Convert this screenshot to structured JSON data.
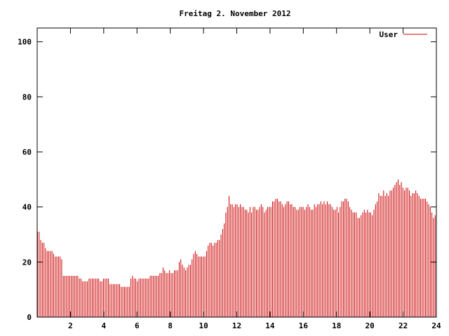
{
  "chart_data": {
    "type": "bar",
    "title": "Freitag 2. November 2012",
    "xlabel": "",
    "ylabel": "",
    "xlim": [
      0,
      24
    ],
    "ylim": [
      0,
      105
    ],
    "xticks": [
      2,
      4,
      6,
      8,
      10,
      12,
      14,
      16,
      18,
      20,
      22,
      24
    ],
    "yticks": [
      0,
      20,
      40,
      60,
      80,
      100
    ],
    "grid": false,
    "legend_position": "top-right",
    "series": [
      {
        "name": "User",
        "color": "#cc0000",
        "values": [
          31,
          31,
          28,
          27,
          27,
          25,
          24,
          24,
          24,
          24,
          23,
          22,
          22,
          22,
          22,
          21,
          15,
          15,
          15,
          15,
          15,
          15,
          15,
          15,
          15,
          15,
          14,
          14,
          13,
          13,
          13,
          13,
          14,
          14,
          14,
          14,
          14,
          14,
          14,
          13,
          13,
          14,
          14,
          14,
          14,
          12,
          12,
          12,
          12,
          12,
          12,
          12,
          11,
          11,
          11,
          11,
          11,
          11,
          14,
          15,
          14,
          14,
          13,
          14,
          14,
          14,
          14,
          14,
          14,
          14,
          15,
          15,
          15,
          15,
          15,
          15,
          16,
          16,
          18,
          17,
          16,
          16,
          17,
          16,
          16,
          17,
          17,
          17,
          20,
          21,
          19,
          18,
          17,
          18,
          19,
          19,
          21,
          23,
          24,
          23,
          22,
          22,
          22,
          22,
          22,
          24,
          26,
          27,
          27,
          26,
          27,
          27,
          28,
          28,
          30,
          32,
          34,
          38,
          40,
          44,
          41,
          41,
          40,
          41,
          41,
          40,
          41,
          40,
          40,
          39,
          39,
          38,
          40,
          38,
          40,
          40,
          39,
          39,
          40,
          41,
          40,
          38,
          39,
          40,
          40,
          40,
          42,
          42,
          43,
          43,
          42,
          42,
          41,
          40,
          41,
          42,
          42,
          41,
          41,
          40,
          40,
          39,
          39,
          40,
          40,
          40,
          39,
          40,
          41,
          40,
          39,
          39,
          41,
          40,
          41,
          41,
          42,
          41,
          42,
          41,
          42,
          41,
          41,
          40,
          39,
          39,
          40,
          38,
          40,
          42,
          42,
          43,
          43,
          42,
          40,
          39,
          38,
          38,
          38,
          36,
          36,
          37,
          38,
          39,
          38,
          39,
          38,
          38,
          37,
          39,
          41,
          42,
          45,
          44,
          44,
          46,
          44,
          45,
          44,
          46,
          46,
          47,
          48,
          49,
          50,
          48,
          49,
          47,
          46,
          47,
          47,
          46,
          44,
          45,
          45,
          46,
          45,
          44,
          43,
          43,
          43,
          43,
          42,
          41,
          40,
          38,
          36,
          37
        ]
      }
    ]
  }
}
